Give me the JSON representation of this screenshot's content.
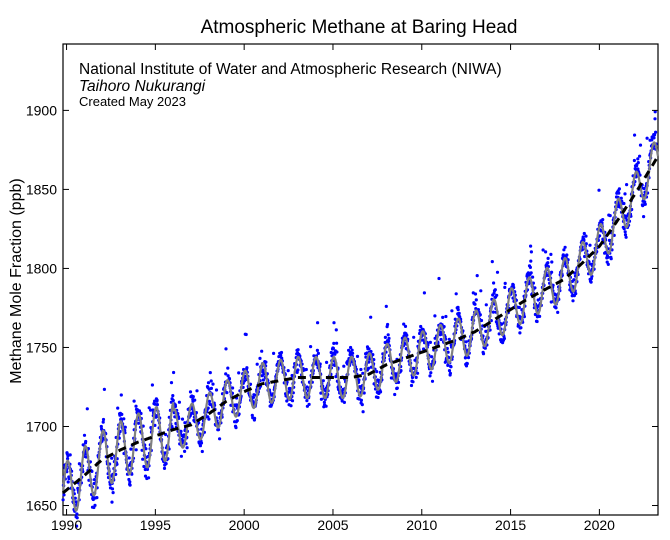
{
  "chart_data": {
    "type": "scatter",
    "title": "Atmospheric Methane at Baring Head",
    "annotations": [
      "National Institute of Water and Atmospheric Research (NIWA)",
      "Taihoro Nukurangi",
      "Created May 2023"
    ],
    "xlabel": "",
    "ylabel": "Methane Mole Fraction (ppb)",
    "xlim": [
      1989.8,
      2023.3
    ],
    "ylim": [
      1644,
      1942
    ],
    "xticks": [
      1990,
      1995,
      2000,
      2005,
      2010,
      2015,
      2020
    ],
    "yticks": [
      1650,
      1700,
      1750,
      1800,
      1850,
      1900
    ],
    "grid": false,
    "legend": "none",
    "colors": {
      "observations": "#0000ff",
      "seasonal_fit": "#808080",
      "trend": "#000000"
    },
    "trend": {
      "x": [
        1989.8,
        1991,
        1992,
        1993,
        1994,
        1995,
        1996,
        1997,
        1998,
        1999,
        2000,
        2001,
        2002,
        2003,
        2004,
        2005,
        2006,
        2007,
        2008,
        2009,
        2010,
        2011,
        2012,
        2013,
        2014,
        2015,
        2016,
        2017,
        2018,
        2019,
        2020,
        2021,
        2022,
        2023.3
      ],
      "y": [
        1658,
        1669,
        1679,
        1685,
        1690,
        1694,
        1698,
        1701,
        1708,
        1716,
        1722,
        1727,
        1729,
        1731,
        1731,
        1731,
        1731,
        1733,
        1739,
        1743,
        1747,
        1751,
        1755,
        1760,
        1767,
        1774,
        1781,
        1787,
        1793,
        1803,
        1814,
        1830,
        1847,
        1871
      ]
    },
    "seasonal_amplitude": 13,
    "seasonal_amplitude_early": 18,
    "series": [
      {
        "name": "",
        "kind": "observations",
        "approx_points": 2100
      },
      {
        "name": "",
        "kind": "seasonal fit"
      },
      {
        "name": "",
        "kind": "trend"
      }
    ]
  }
}
